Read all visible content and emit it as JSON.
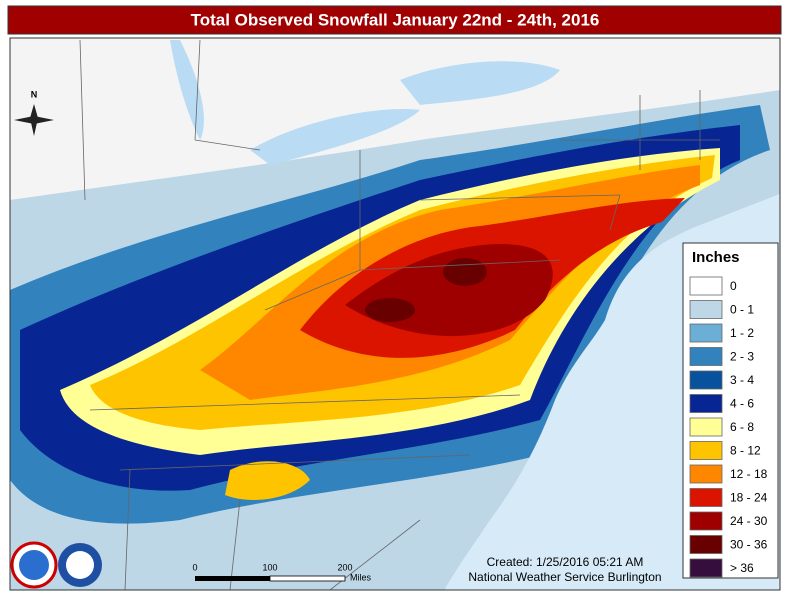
{
  "header": {
    "title": "Total Observed Snowfall January 22nd - 24th, 2016"
  },
  "compass": {
    "north": "N"
  },
  "legend": {
    "title": "Inches",
    "items": [
      {
        "label": "0",
        "color": "#ffffff"
      },
      {
        "label": "0 - 1",
        "color": "#bdd7e7"
      },
      {
        "label": "1 - 2",
        "color": "#6baed6"
      },
      {
        "label": "2 - 3",
        "color": "#3182bd"
      },
      {
        "label": "3 - 4",
        "color": "#08519c"
      },
      {
        "label": "4 - 6",
        "color": "#082594"
      },
      {
        "label": "6 - 8",
        "color": "#ffff96"
      },
      {
        "label": "8 - 12",
        "color": "#ffc400"
      },
      {
        "label": "12 - 18",
        "color": "#ff8700"
      },
      {
        "label": "18 - 24",
        "color": "#db1400"
      },
      {
        "label": "24 - 30",
        "color": "#9e0000"
      },
      {
        "label": "30 - 36",
        "color": "#690000"
      },
      {
        "label": "> 36",
        "color": "#360e3e"
      }
    ]
  },
  "scale_bar": {
    "labels": [
      "0",
      "100",
      "200"
    ],
    "unit": "Miles"
  },
  "credits": {
    "created": "Created: 1/25/2016 05:21 AM",
    "source": "National Weather Service Burlington"
  }
}
